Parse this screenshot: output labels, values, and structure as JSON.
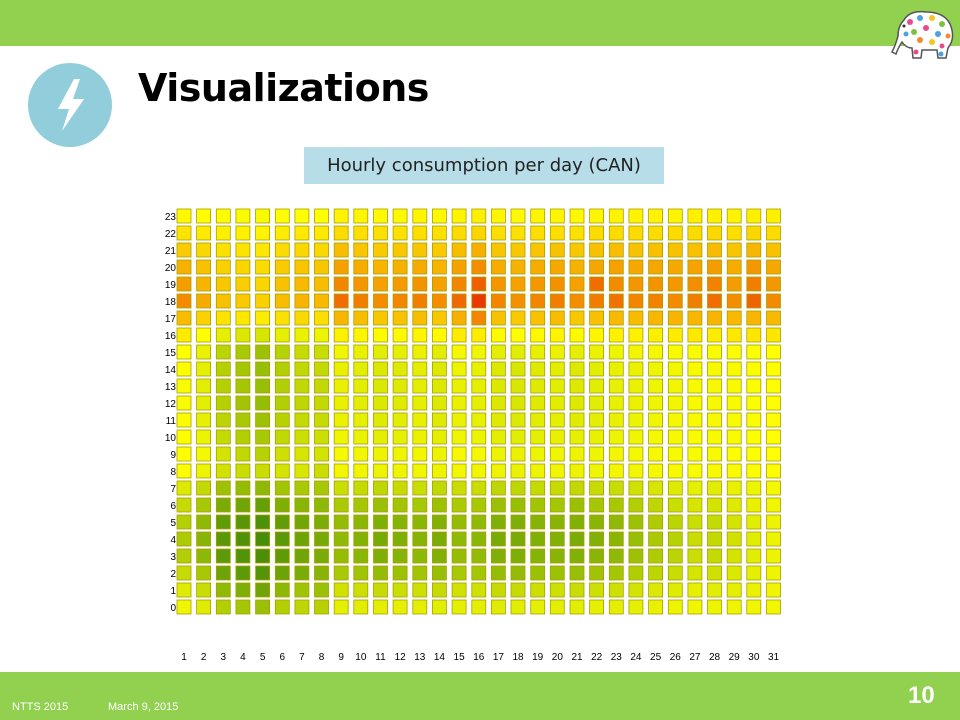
{
  "theme": {
    "bar_green": "#92d050",
    "icon_blue": "#92cddc",
    "caption_bg": "#b7dde8"
  },
  "slide": {
    "title": "Visualizations",
    "caption": "Hourly consumption per day (CAN)",
    "icon": "lightning-bolt-icon",
    "logo": "polka-dot-elephant-logo"
  },
  "footer": {
    "conference": "NTTS 2015",
    "date": "March 9, 2015",
    "page_number": "10"
  },
  "chart_data": {
    "type": "heatmap",
    "title": "",
    "xlabel": "",
    "ylabel": "",
    "x": [
      1,
      2,
      3,
      4,
      5,
      6,
      7,
      8,
      9,
      10,
      11,
      12,
      13,
      14,
      15,
      16,
      17,
      18,
      19,
      20,
      21,
      22,
      23,
      24,
      25,
      26,
      27,
      28,
      29,
      30,
      31
    ],
    "y": [
      0,
      1,
      2,
      3,
      4,
      5,
      6,
      7,
      8,
      9,
      10,
      11,
      12,
      13,
      14,
      15,
      16,
      17,
      18,
      19,
      20,
      21,
      22,
      23
    ],
    "value_scale": "0 = dark green (low), 1 = yellow, 2 = red (high)",
    "values": [
      [
        0.92,
        0.83,
        0.58,
        0.5,
        0.45,
        0.58,
        0.65,
        0.61,
        0.86,
        0.84,
        0.85,
        0.86,
        0.85,
        0.84,
        0.86,
        0.85,
        0.83,
        0.84,
        0.86,
        0.85,
        0.84,
        0.86,
        0.85,
        0.86,
        0.88,
        0.9,
        0.92,
        0.9,
        0.91,
        0.92,
        0.93
      ],
      [
        0.83,
        0.7,
        0.4,
        0.3,
        0.22,
        0.38,
        0.48,
        0.46,
        0.75,
        0.72,
        0.69,
        0.71,
        0.73,
        0.69,
        0.75,
        0.74,
        0.69,
        0.69,
        0.72,
        0.73,
        0.7,
        0.73,
        0.73,
        0.76,
        0.8,
        0.83,
        0.87,
        0.84,
        0.86,
        0.89,
        0.92
      ],
      [
        0.69,
        0.52,
        0.2,
        0.12,
        0.07,
        0.2,
        0.28,
        0.35,
        0.53,
        0.48,
        0.42,
        0.46,
        0.49,
        0.44,
        0.53,
        0.51,
        0.43,
        0.42,
        0.46,
        0.47,
        0.44,
        0.48,
        0.5,
        0.57,
        0.64,
        0.7,
        0.77,
        0.74,
        0.8,
        0.86,
        0.91
      ],
      [
        0.58,
        0.38,
        0.12,
        0.06,
        0.02,
        0.13,
        0.22,
        0.28,
        0.43,
        0.37,
        0.3,
        0.34,
        0.38,
        0.32,
        0.43,
        0.41,
        0.31,
        0.3,
        0.34,
        0.35,
        0.32,
        0.36,
        0.39,
        0.47,
        0.56,
        0.63,
        0.71,
        0.68,
        0.76,
        0.84,
        0.9
      ],
      [
        0.55,
        0.35,
        0.1,
        0.05,
        0.01,
        0.11,
        0.2,
        0.26,
        0.39,
        0.33,
        0.26,
        0.3,
        0.34,
        0.28,
        0.39,
        0.37,
        0.27,
        0.27,
        0.31,
        0.32,
        0.28,
        0.32,
        0.36,
        0.44,
        0.54,
        0.61,
        0.7,
        0.67,
        0.75,
        0.84,
        0.9
      ],
      [
        0.59,
        0.39,
        0.14,
        0.09,
        0.04,
        0.15,
        0.23,
        0.29,
        0.42,
        0.37,
        0.3,
        0.34,
        0.37,
        0.32,
        0.42,
        0.4,
        0.31,
        0.3,
        0.34,
        0.35,
        0.32,
        0.36,
        0.39,
        0.47,
        0.56,
        0.63,
        0.71,
        0.68,
        0.76,
        0.84,
        0.9
      ],
      [
        0.69,
        0.52,
        0.28,
        0.22,
        0.17,
        0.3,
        0.36,
        0.38,
        0.54,
        0.5,
        0.45,
        0.49,
        0.52,
        0.46,
        0.54,
        0.52,
        0.45,
        0.44,
        0.49,
        0.5,
        0.45,
        0.5,
        0.52,
        0.58,
        0.65,
        0.71,
        0.78,
        0.76,
        0.82,
        0.88,
        0.92
      ],
      [
        0.81,
        0.67,
        0.47,
        0.42,
        0.39,
        0.49,
        0.53,
        0.52,
        0.71,
        0.68,
        0.65,
        0.69,
        0.7,
        0.66,
        0.7,
        0.7,
        0.65,
        0.65,
        0.68,
        0.69,
        0.66,
        0.69,
        0.7,
        0.74,
        0.78,
        0.82,
        0.86,
        0.84,
        0.88,
        0.91,
        0.94
      ],
      [
        0.98,
        0.9,
        0.75,
        0.7,
        0.7,
        0.76,
        0.79,
        0.7,
        0.93,
        0.92,
        0.9,
        0.91,
        0.92,
        0.9,
        0.93,
        0.92,
        0.9,
        0.89,
        0.9,
        0.92,
        0.9,
        0.91,
        0.93,
        0.93,
        0.94,
        0.96,
        0.97,
        0.96,
        0.97,
        0.98,
        0.98
      ],
      [
        1.0,
        0.94,
        0.76,
        0.66,
        0.61,
        0.73,
        0.78,
        0.76,
        0.95,
        0.93,
        0.9,
        0.91,
        0.93,
        0.9,
        0.95,
        0.94,
        0.9,
        0.89,
        0.91,
        0.92,
        0.9,
        0.91,
        0.93,
        0.94,
        0.95,
        0.96,
        0.97,
        0.96,
        0.98,
        0.99,
        1.0
      ],
      [
        0.99,
        0.9,
        0.68,
        0.58,
        0.52,
        0.66,
        0.72,
        0.72,
        0.92,
        0.89,
        0.85,
        0.86,
        0.89,
        0.85,
        0.92,
        0.9,
        0.85,
        0.84,
        0.86,
        0.88,
        0.86,
        0.88,
        0.9,
        0.92,
        0.94,
        0.95,
        0.97,
        0.96,
        0.97,
        0.99,
        1.0
      ],
      [
        0.98,
        0.87,
        0.63,
        0.53,
        0.47,
        0.61,
        0.68,
        0.69,
        0.89,
        0.86,
        0.82,
        0.84,
        0.87,
        0.82,
        0.89,
        0.87,
        0.82,
        0.81,
        0.84,
        0.86,
        0.83,
        0.85,
        0.88,
        0.9,
        0.92,
        0.94,
        0.96,
        0.95,
        0.97,
        0.98,
        0.99
      ],
      [
        0.97,
        0.85,
        0.6,
        0.49,
        0.43,
        0.58,
        0.65,
        0.67,
        0.88,
        0.84,
        0.8,
        0.83,
        0.86,
        0.81,
        0.88,
        0.86,
        0.8,
        0.79,
        0.82,
        0.84,
        0.81,
        0.84,
        0.87,
        0.89,
        0.91,
        0.93,
        0.96,
        0.95,
        0.96,
        0.98,
        0.99
      ],
      [
        0.97,
        0.85,
        0.6,
        0.5,
        0.44,
        0.58,
        0.66,
        0.67,
        0.88,
        0.84,
        0.8,
        0.82,
        0.85,
        0.8,
        0.88,
        0.86,
        0.8,
        0.79,
        0.82,
        0.84,
        0.81,
        0.84,
        0.87,
        0.89,
        0.91,
        0.93,
        0.96,
        0.95,
        0.96,
        0.98,
        0.99
      ],
      [
        0.98,
        0.86,
        0.6,
        0.5,
        0.44,
        0.58,
        0.66,
        0.67,
        0.88,
        0.84,
        0.8,
        0.82,
        0.85,
        0.8,
        0.9,
        0.87,
        0.8,
        0.79,
        0.82,
        0.84,
        0.81,
        0.84,
        0.87,
        0.89,
        0.91,
        0.93,
        0.96,
        0.95,
        0.96,
        0.98,
        0.99
      ],
      [
        0.99,
        0.88,
        0.63,
        0.53,
        0.47,
        0.61,
        0.69,
        0.7,
        0.92,
        0.88,
        0.84,
        0.86,
        0.88,
        0.84,
        0.94,
        0.92,
        0.85,
        0.84,
        0.87,
        0.89,
        0.86,
        0.89,
        0.91,
        0.93,
        0.94,
        0.96,
        0.97,
        0.97,
        0.98,
        0.99,
        1.0
      ],
      [
        1.08,
        1.0,
        0.86,
        0.8,
        0.78,
        0.86,
        0.89,
        0.9,
        1.06,
        1.04,
        1.02,
        1.03,
        1.04,
        1.02,
        1.08,
        1.08,
        1.02,
        1.01,
        1.03,
        1.05,
        1.02,
        1.04,
        1.06,
        1.06,
        1.07,
        1.08,
        1.09,
        1.08,
        1.09,
        1.1,
        1.1
      ],
      [
        1.29,
        1.19,
        1.12,
        1.1,
        1.08,
        1.13,
        1.16,
        1.14,
        1.31,
        1.28,
        1.24,
        1.26,
        1.28,
        1.24,
        1.34,
        1.52,
        1.26,
        1.23,
        1.26,
        1.28,
        1.24,
        1.27,
        1.3,
        1.29,
        1.31,
        1.32,
        1.31,
        1.32,
        1.3,
        1.31,
        1.3
      ],
      [
        1.5,
        1.36,
        1.26,
        1.23,
        1.2,
        1.28,
        1.32,
        1.3,
        1.62,
        1.55,
        1.48,
        1.52,
        1.55,
        1.48,
        1.64,
        1.85,
        1.52,
        1.47,
        1.52,
        1.55,
        1.48,
        1.56,
        1.6,
        1.52,
        1.53,
        1.5,
        1.55,
        1.62,
        1.48,
        1.66,
        1.5
      ],
      [
        1.42,
        1.32,
        1.24,
        1.21,
        1.18,
        1.26,
        1.3,
        1.28,
        1.52,
        1.45,
        1.4,
        1.43,
        1.46,
        1.4,
        1.52,
        1.68,
        1.45,
        1.4,
        1.44,
        1.47,
        1.4,
        1.62,
        1.5,
        1.45,
        1.46,
        1.44,
        1.48,
        1.53,
        1.42,
        1.55,
        1.44
      ],
      [
        1.33,
        1.26,
        1.2,
        1.18,
        1.15,
        1.22,
        1.25,
        1.24,
        1.4,
        1.35,
        1.32,
        1.34,
        1.36,
        1.32,
        1.4,
        1.48,
        1.35,
        1.33,
        1.35,
        1.37,
        1.33,
        1.38,
        1.4,
        1.37,
        1.38,
        1.37,
        1.39,
        1.42,
        1.35,
        1.44,
        1.37
      ],
      [
        1.22,
        1.17,
        1.13,
        1.12,
        1.1,
        1.15,
        1.17,
        1.16,
        1.28,
        1.25,
        1.23,
        1.24,
        1.25,
        1.23,
        1.28,
        1.34,
        1.25,
        1.24,
        1.25,
        1.26,
        1.24,
        1.27,
        1.28,
        1.26,
        1.27,
        1.26,
        1.27,
        1.29,
        1.25,
        1.31,
        1.26
      ],
      [
        1.12,
        1.09,
        1.07,
        1.06,
        1.05,
        1.08,
        1.09,
        1.09,
        1.15,
        1.14,
        1.13,
        1.13,
        1.14,
        1.13,
        1.15,
        1.18,
        1.14,
        1.13,
        1.14,
        1.14,
        1.13,
        1.15,
        1.15,
        1.15,
        1.15,
        1.15,
        1.15,
        1.16,
        1.14,
        1.17,
        1.15
      ],
      [
        1.03,
        1.01,
        0.98,
        0.97,
        0.96,
        0.99,
        1.0,
        1.0,
        1.05,
        1.04,
        1.03,
        1.03,
        1.04,
        1.03,
        1.05,
        1.07,
        1.04,
        1.03,
        1.04,
        1.04,
        1.03,
        1.04,
        1.05,
        1.05,
        1.05,
        1.05,
        1.06,
        1.06,
        1.05,
        1.07,
        1.06
      ]
    ]
  }
}
